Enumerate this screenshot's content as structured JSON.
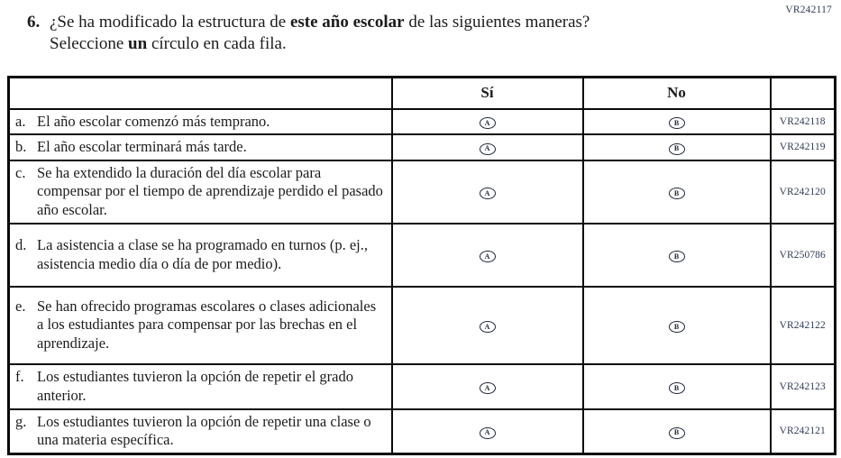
{
  "page": {
    "top_right_code": "VR242117"
  },
  "question": {
    "number": "6.",
    "seg1": "¿Se ha modificado la estructura de ",
    "bold1": "este año escolar",
    "seg2": " de las siguientes maneras? Seleccione ",
    "bold2": "un",
    "seg3": " círculo en cada fila."
  },
  "table": {
    "headers": {
      "label": "",
      "yes": "Sí",
      "no": "No",
      "code": ""
    },
    "options": {
      "a": "A",
      "b": "B"
    },
    "rows": [
      {
        "letter": "a.",
        "text": "El año escolar comenzó más temprano.",
        "code": "VR242118"
      },
      {
        "letter": "b.",
        "text": "El año escolar terminará más tarde.",
        "code": "VR242119"
      },
      {
        "letter": "c.",
        "text": "Se ha extendido la duración del día escolar para compensar por el tiempo de aprendizaje perdido el pasado año escolar.",
        "code": "VR242120"
      },
      {
        "letter": "d.",
        "text": "La asistencia a clase se ha programado en turnos (p. ej., asistencia medio día o día de por medio).",
        "code": "VR250786"
      },
      {
        "letter": "e.",
        "text": "Se han ofrecido programas escolares o clases adicionales a los estudiantes para compensar por las brechas en el aprendizaje.",
        "code": "VR242122"
      },
      {
        "letter": "f.",
        "text": "Los estudiantes tuvieron la opción de repetir el grado anterior.",
        "code": "VR242123"
      },
      {
        "letter": "g.",
        "text": "Los estudiantes tuvieron la opción de repetir una clase o una materia específica.",
        "code": "VR242121"
      }
    ]
  },
  "colors": {
    "border": "#0a0a0a",
    "text": "#1c1c1c",
    "code_text": "#2f3b55"
  }
}
